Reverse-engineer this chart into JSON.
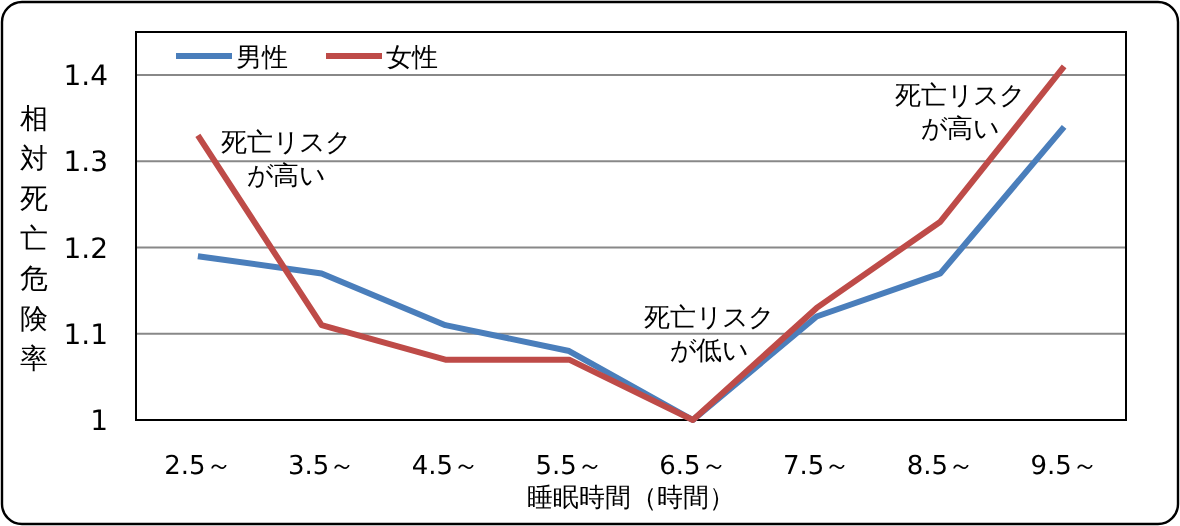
{
  "chart_data": {
    "type": "line",
    "xlabel": "睡眠時間（時間）",
    "ylabel": "相対死亡危険率",
    "categories": [
      "2.5～",
      "3.5～",
      "4.5～",
      "5.5～",
      "6.5～",
      "7.5～",
      "8.5～",
      "9.5～"
    ],
    "series": [
      {
        "name": "男性",
        "color": "#4a7ebb",
        "values": [
          1.19,
          1.17,
          1.11,
          1.08,
          1.0,
          1.12,
          1.17,
          1.34
        ]
      },
      {
        "name": "女性",
        "color": "#be4b48",
        "values": [
          1.33,
          1.11,
          1.07,
          1.07,
          1.0,
          1.13,
          1.23,
          1.41
        ]
      }
    ],
    "ylim": [
      1,
      1.45
    ],
    "yticks": [
      1,
      1.1,
      1.2,
      1.3,
      1.4
    ],
    "grid": "y",
    "legend": "top left",
    "marker": "none",
    "line_style": "solid",
    "annotations": [
      {
        "text": "死亡リスクが高い",
        "x": "2.5～",
        "y": 1.33
      },
      {
        "text": "死亡リスクが低い",
        "x": "6.5～",
        "y": 1.0
      },
      {
        "text": "死亡リスクが高い",
        "x": "9.5～",
        "y": 1.41
      }
    ]
  }
}
